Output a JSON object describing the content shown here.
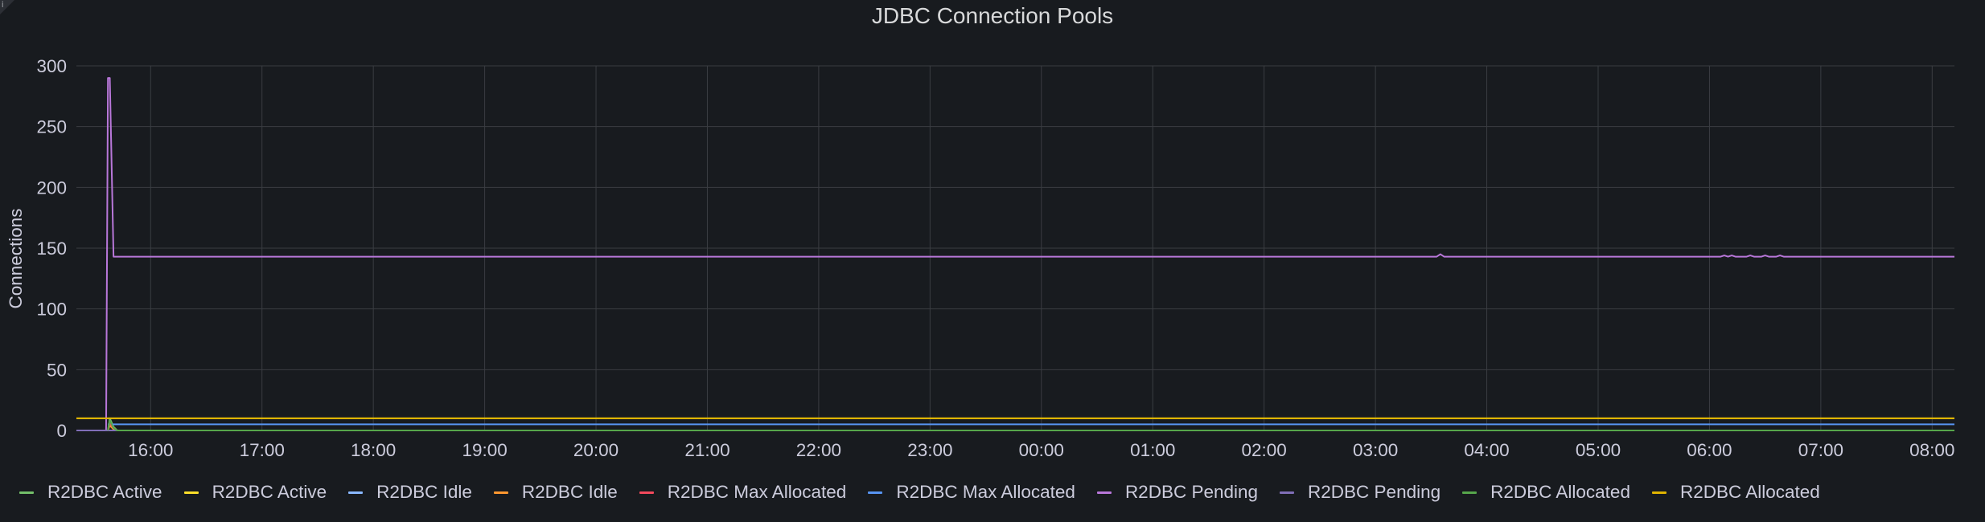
{
  "panel": {
    "title": "JDBC Connection Pools",
    "info_icon": "info-icon"
  },
  "chart_data": {
    "type": "line",
    "title": "JDBC Connection Pools",
    "xlabel": "",
    "ylabel": "Connections",
    "ylim": [
      0,
      300
    ],
    "yticks": [
      "0",
      "50",
      "100",
      "150",
      "200",
      "250",
      "300"
    ],
    "xticks": [
      "16:00",
      "17:00",
      "18:00",
      "19:00",
      "20:00",
      "21:00",
      "22:00",
      "23:00",
      "00:00",
      "01:00",
      "02:00",
      "03:00",
      "04:00",
      "05:00",
      "06:00",
      "07:00",
      "08:00"
    ],
    "xrange": [
      "15:20",
      "08:12"
    ],
    "grid": true,
    "legend_position": "bottom",
    "series": [
      {
        "name": "R2DBC Active",
        "color": "#73bf69",
        "points": [
          [
            "15:37",
            0
          ],
          [
            "15:38",
            10
          ],
          [
            "15:40",
            3
          ],
          [
            "15:42",
            0
          ],
          [
            "08:12",
            0
          ]
        ]
      },
      {
        "name": "R2DBC Active",
        "color": "#fade2a",
        "points": [
          [
            "15:20",
            10
          ],
          [
            "08:12",
            10
          ]
        ]
      },
      {
        "name": "R2DBC Idle",
        "color": "#5794f2",
        "points": [
          [
            "15:37",
            5
          ],
          [
            "08:12",
            5
          ]
        ]
      },
      {
        "name": "R2DBC Idle",
        "color": "#ff9830",
        "points": [
          [
            "15:37",
            0
          ],
          [
            "15:38",
            4
          ],
          [
            "15:40",
            1
          ],
          [
            "15:42",
            0
          ],
          [
            "08:12",
            0
          ]
        ]
      },
      {
        "name": "R2DBC Max Allocated",
        "color": "#f2495c",
        "points": [
          [
            "15:37",
            0
          ],
          [
            "15:38",
            6
          ],
          [
            "15:40",
            2
          ],
          [
            "15:42",
            0
          ],
          [
            "08:12",
            0
          ]
        ]
      },
      {
        "name": "R2DBC Max Allocated",
        "color": "#5794f2",
        "points": [
          [
            "15:20",
            0
          ],
          [
            "08:12",
            0
          ]
        ]
      },
      {
        "name": "R2DBC Pending",
        "color": "#b877d9",
        "points": [
          [
            "15:36",
            0
          ],
          [
            "15:37",
            290
          ],
          [
            "15:38",
            290
          ],
          [
            "15:40",
            143
          ],
          [
            "03:33",
            143
          ],
          [
            "03:35",
            145
          ],
          [
            "03:37",
            143
          ],
          [
            "06:06",
            143
          ],
          [
            "06:08",
            144
          ],
          [
            "06:10",
            143
          ],
          [
            "06:12",
            144
          ],
          [
            "06:14",
            143
          ],
          [
            "06:20",
            143
          ],
          [
            "06:22",
            144
          ],
          [
            "06:24",
            143
          ],
          [
            "06:28",
            143
          ],
          [
            "06:30",
            144
          ],
          [
            "06:32",
            143
          ],
          [
            "06:36",
            143
          ],
          [
            "06:38",
            144
          ],
          [
            "06:40",
            143
          ],
          [
            "08:12",
            143
          ]
        ]
      },
      {
        "name": "R2DBC Pending",
        "color": "#806eb7",
        "points": [
          [
            "15:20",
            0
          ],
          [
            "08:12",
            0
          ]
        ]
      },
      {
        "name": "R2DBC Allocated",
        "color": "#56a64b",
        "points": [
          [
            "15:37",
            0
          ],
          [
            "15:38",
            8
          ],
          [
            "15:40",
            2
          ],
          [
            "15:42",
            0
          ],
          [
            "08:12",
            0
          ]
        ]
      },
      {
        "name": "R2DBC Allocated",
        "color": "#e0b400",
        "points": [
          [
            "15:20",
            10
          ],
          [
            "08:12",
            10
          ]
        ]
      }
    ]
  },
  "legend": [
    {
      "label": "R2DBC Active",
      "color": "#73bf69"
    },
    {
      "label": "R2DBC Active",
      "color": "#fade2a"
    },
    {
      "label": "R2DBC Idle",
      "color": "#8ab8ff"
    },
    {
      "label": "R2DBC Idle",
      "color": "#ff9830"
    },
    {
      "label": "R2DBC Max Allocated",
      "color": "#f2495c"
    },
    {
      "label": "R2DBC Max Allocated",
      "color": "#5794f2"
    },
    {
      "label": "R2DBC Pending",
      "color": "#b877d9"
    },
    {
      "label": "R2DBC Pending",
      "color": "#806eb7"
    },
    {
      "label": "R2DBC Allocated",
      "color": "#56a64b"
    },
    {
      "label": "R2DBC Allocated",
      "color": "#e0b400"
    }
  ]
}
